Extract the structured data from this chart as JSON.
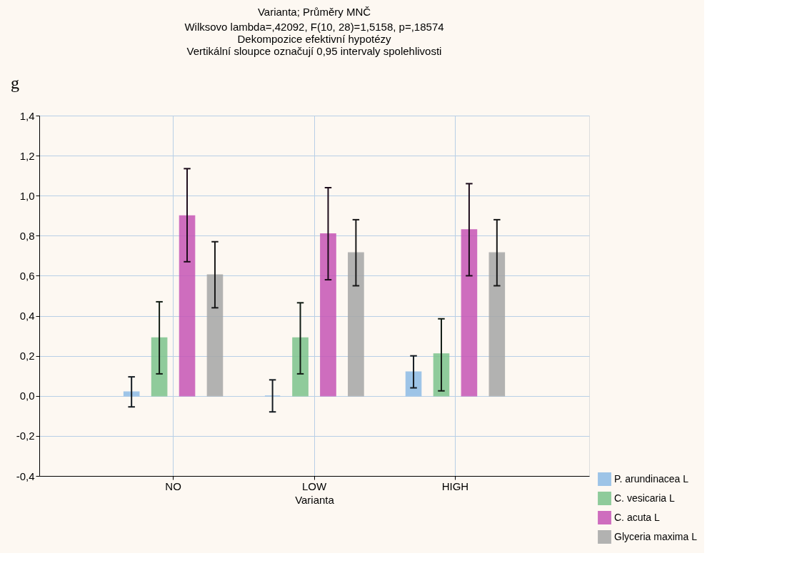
{
  "chart_data": {
    "type": "bar",
    "title": "Varianta; Průměry MNČ",
    "subtitle": "Wilksovo lambda=,42092, F(10, 28)=1,5158, p=,18574\nDekompozice efektivní hypotézy\nVertikální sloupce označují 0,95 intervaly spolehlivosti",
    "xlabel": "Varianta",
    "annotations": [
      "g"
    ],
    "categories": [
      "NO",
      "LOW",
      "HIGH"
    ],
    "series": [
      {
        "name": "P. arundinacea L",
        "color": "#8dbbe6",
        "values": [
          0.02,
          0.0,
          0.12
        ],
        "errors": [
          [
            -0.055,
            0.095
          ],
          [
            -0.08,
            0.08
          ],
          [
            0.04,
            0.2
          ]
        ]
      },
      {
        "name": "C. vesicaria L",
        "color": "#7cc48c",
        "values": [
          0.29,
          0.29,
          0.21
        ],
        "errors": [
          [
            0.11,
            0.47
          ],
          [
            0.11,
            0.465
          ],
          [
            0.025,
            0.385
          ]
        ]
      },
      {
        "name": "C. acuta L",
        "color": "#c655b6",
        "values": [
          0.9,
          0.81,
          0.83
        ],
        "errors": [
          [
            0.67,
            1.135
          ],
          [
            0.58,
            1.04
          ],
          [
            0.6,
            1.06
          ]
        ]
      },
      {
        "name": "Glyceria maxima L",
        "color": "#a6a6a6",
        "values": [
          0.605,
          0.715,
          0.715
        ],
        "errors": [
          [
            0.44,
            0.77
          ],
          [
            0.55,
            0.88
          ],
          [
            0.55,
            0.88
          ]
        ]
      }
    ],
    "ylim": [
      -0.4,
      1.4
    ],
    "yticks": [
      {
        "value": -0.4,
        "label": "-0,4"
      },
      {
        "value": -0.2,
        "label": "-0,2"
      },
      {
        "value": 0,
        "label": "0,0"
      },
      {
        "value": 0.2,
        "label": "0,2"
      },
      {
        "value": 0.4,
        "label": "0,4"
      },
      {
        "value": 0.6,
        "label": "0,6"
      },
      {
        "value": 0.8,
        "label": "0,8"
      },
      {
        "value": 1.0,
        "label": "1,0"
      },
      {
        "value": 1.2,
        "label": "1,2"
      },
      {
        "value": 1.4,
        "label": "1,4"
      }
    ],
    "grid": true,
    "legend": "bottom right"
  }
}
